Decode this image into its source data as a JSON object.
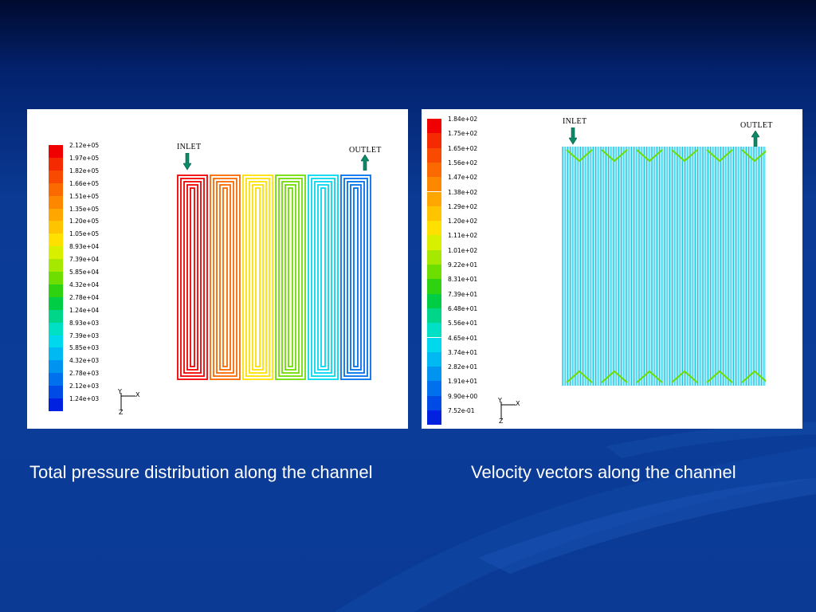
{
  "slide": {
    "caption_left": "Total pressure distribution along the channel",
    "caption_right": "Velocity vectors along the channel"
  },
  "pressure_plot": {
    "inlet_label": "INLET",
    "outlet_label": "OUTLET",
    "axis_labels": {
      "vertical": "Y",
      "horizontal": "X",
      "depth": "Z"
    },
    "legend_labels": [
      "2.12e+05",
      "1.97e+05",
      "1.82e+05",
      "1.66e+05",
      "1.51e+05",
      "1.35e+05",
      "1.20e+05",
      "1.05e+05",
      "8.93e+04",
      "7.39e+04",
      "5.85e+04",
      "4.32e+04",
      "2.78e+04",
      "1.24e+04",
      "8.93e+03",
      "7.39e+03",
      "5.85e+03",
      "4.32e+03",
      "2.78e+03",
      "2.12e+03",
      "1.24e+03"
    ],
    "legend_colors": [
      "#f00000",
      "#f52a00",
      "#f84a00",
      "#fb6a00",
      "#fd8800",
      "#ffa600",
      "#ffc400",
      "#ffe000",
      "#d9ef00",
      "#a6e800",
      "#6edd00",
      "#2fd210",
      "#00cc44",
      "#00d68a",
      "#00e0c4",
      "#00d8ee",
      "#00b8f2",
      "#0094f0",
      "#0070ec",
      "#004ae6",
      "#0022e0"
    ]
  },
  "velocity_plot": {
    "inlet_label": "INLET",
    "outlet_label": "OUTLET",
    "axis_labels": {
      "vertical": "Y",
      "horizontal": "X",
      "depth": "Z"
    },
    "legend_labels": [
      "1.84e+02",
      "1.75e+02",
      "1.65e+02",
      "1.56e+02",
      "1.47e+02",
      "1.38e+02",
      "1.29e+02",
      "1.20e+02",
      "1.11e+02",
      "1.01e+02",
      "9.22e+01",
      "8.31e+01",
      "7.39e+01",
      "6.48e+01",
      "5.56e+01",
      "4.65e+01",
      "3.74e+01",
      "2.82e+01",
      "1.91e+01",
      "9.90e+00",
      "7.52e-01"
    ],
    "legend_colors": [
      "#f00000",
      "#f52a00",
      "#f84a00",
      "#fb6a00",
      "#fd8800",
      "#ffa600",
      "#ffc400",
      "#ffe000",
      "#d9ef00",
      "#a6e800",
      "#6edd00",
      "#2fd210",
      "#00cc44",
      "#00d68a",
      "#00e0c4",
      "#00d8ee",
      "#00b8f2",
      "#0094f0",
      "#0070ec",
      "#004ae6",
      "#0022e0"
    ]
  },
  "colors": {
    "arrow": "#0b8a6a",
    "background": "#0b3c98"
  }
}
